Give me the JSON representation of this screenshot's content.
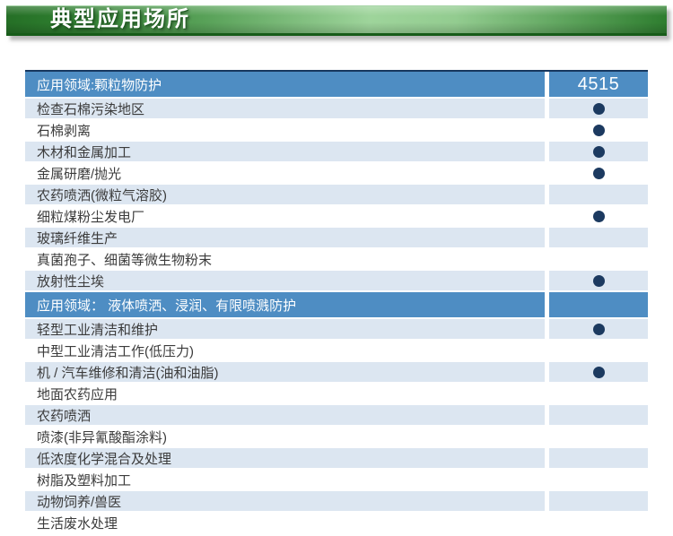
{
  "title_bar": {
    "label": "典型应用场所"
  },
  "table": {
    "product_column_header": "4515",
    "sections": [
      {
        "header": "应用领域:颗粒物防护",
        "rows": [
          {
            "label": "检查石棉污染地区",
            "dot": true
          },
          {
            "label": "石棉剥离",
            "dot": true
          },
          {
            "label": "木材和金属加工",
            "dot": true
          },
          {
            "label": "金属研磨/抛光",
            "dot": true
          },
          {
            "label": "农药喷洒(微粒气溶胶)",
            "dot": false
          },
          {
            "label": "细粒煤粉尘发电厂",
            "dot": true
          },
          {
            "label": "玻璃纤维生产",
            "dot": false
          },
          {
            "label": "真菌孢子、细菌等微生物粉末",
            "dot": false
          },
          {
            "label": "放射性尘埃",
            "dot": true
          }
        ]
      },
      {
        "header": "应用领域： 液体喷洒、浸润、有限喷溅防护",
        "rows": [
          {
            "label": "轻型工业清洁和维护",
            "dot": true
          },
          {
            "label": "中型工业清洁工作(低压力)",
            "dot": false
          },
          {
            "label": "机 / 汽车维修和清洁(油和油脂)",
            "dot": true
          },
          {
            "label": "地面农药应用",
            "dot": false
          },
          {
            "label": "农药喷洒",
            "dot": false
          },
          {
            "label": "喷漆(非异氰酸酯涂料)",
            "dot": false
          },
          {
            "label": "低浓度化学混合及处理",
            "dot": false
          },
          {
            "label": "树脂及塑料加工",
            "dot": false
          },
          {
            "label": "动物饲养/兽医",
            "dot": false
          },
          {
            "label": "生活废水处理",
            "dot": false
          }
        ]
      }
    ]
  },
  "icons": {
    "dot": "filled-circle"
  },
  "colors": {
    "banner_green_dark": "#256f26",
    "banner_green_light": "#9ed49b",
    "header_blue": "#4e8dc3",
    "row_light_blue": "#dce6f1",
    "dot_navy": "#1c3a60",
    "topline_navy": "#17375e",
    "row_text": "#3b3b3b"
  }
}
